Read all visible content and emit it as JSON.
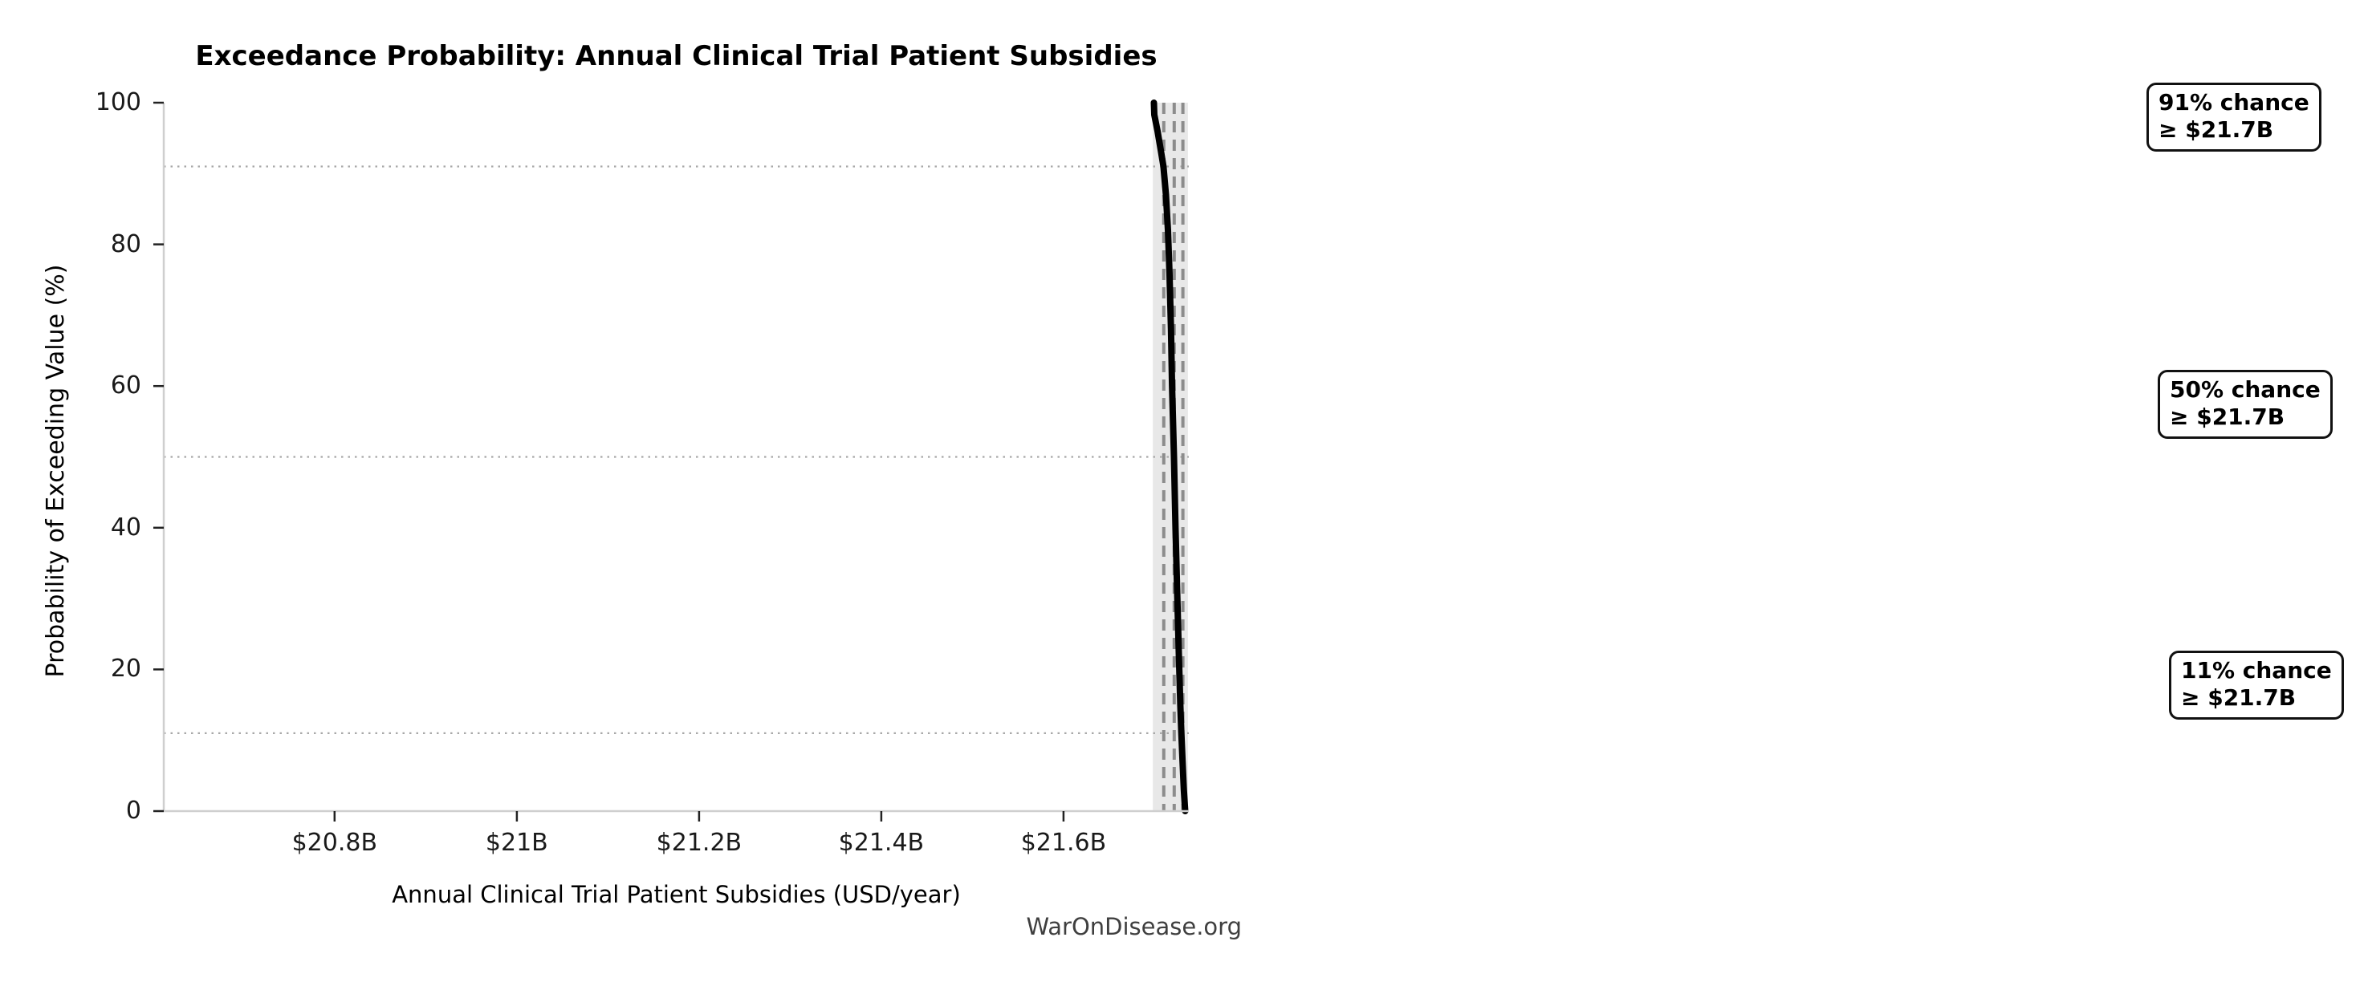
{
  "chart": {
    "title": "Exceedance Probability: Annual Clinical Trial Patient Subsidies",
    "xlabel": "Annual Clinical Trial Patient Subsidies (USD/year)",
    "ylabel": "Probability of Exceeding Value (%)",
    "watermark": "WarOnDisease.org"
  },
  "annotations": [
    {
      "line1": "91% chance",
      "line2": "≥ $21.7B"
    },
    {
      "line1": "50% chance",
      "line2": "≥ $21.7B"
    },
    {
      "line1": "11% chance",
      "line2": "≥ $21.7B"
    }
  ],
  "chart_data": {
    "type": "line",
    "title": "Exceedance Probability: Annual Clinical Trial Patient Subsidies",
    "xlabel": "Annual Clinical Trial Patient Subsidies (USD/year)",
    "ylabel": "Probability of Exceeding Value (%)",
    "xlim": [
      20.6125,
      21.7375
    ],
    "ylim": [
      0,
      100
    ],
    "grid": "off",
    "legend": "none",
    "xticks": [
      {
        "value": 20.8,
        "label": "$20.8B"
      },
      {
        "value": 21.0,
        "label": "$21B"
      },
      {
        "value": 21.2,
        "label": "$21.2B"
      },
      {
        "value": 21.4,
        "label": "$21.4B"
      },
      {
        "value": 21.6,
        "label": "$21.6B"
      }
    ],
    "yticks": [
      {
        "value": 0,
        "label": "0"
      },
      {
        "value": 20,
        "label": "20"
      },
      {
        "value": 40,
        "label": "40"
      },
      {
        "value": 60,
        "label": "60"
      },
      {
        "value": 80,
        "label": "80"
      },
      {
        "value": 100,
        "label": "100"
      }
    ],
    "series": [
      {
        "name": "exceedance-curve",
        "probability_pct": [
          100,
          98.3,
          96,
          93,
          91,
          87,
          82,
          76,
          68,
          60,
          50,
          40,
          30,
          22,
          15,
          11,
          7,
          3,
          1,
          0
        ],
        "value_usd_billions": [
          21.6992,
          21.6996,
          21.7031,
          21.7071,
          21.7097,
          21.7124,
          21.7146,
          21.7163,
          21.7179,
          21.7191,
          21.7212,
          21.7229,
          21.7249,
          21.7266,
          21.7282,
          21.7293,
          21.7306,
          21.732,
          21.733,
          21.7335
        ]
      }
    ],
    "reference_lines": [
      {
        "probability_pct": 91,
        "value_usd_billions": 21.71,
        "label": "91% chance ≥ $21.7B"
      },
      {
        "probability_pct": 50,
        "value_usd_billions": 21.7215,
        "label": "50% chance ≥ $21.7B"
      },
      {
        "probability_pct": 11,
        "value_usd_billions": 21.731,
        "label": "11% chance ≥ $21.7B"
      }
    ],
    "uncertainty_band_usd_billions": [
      21.698,
      21.7365
    ],
    "colors": {
      "curve": "#000000",
      "band": "#e8e8e8",
      "dashed_line": "#8c8c8c",
      "dotted_line": "#a8a8a8",
      "spine": "#cfcfcf",
      "tick": "#222222",
      "text": "#000000",
      "watermark": "#3f3f3f"
    }
  }
}
